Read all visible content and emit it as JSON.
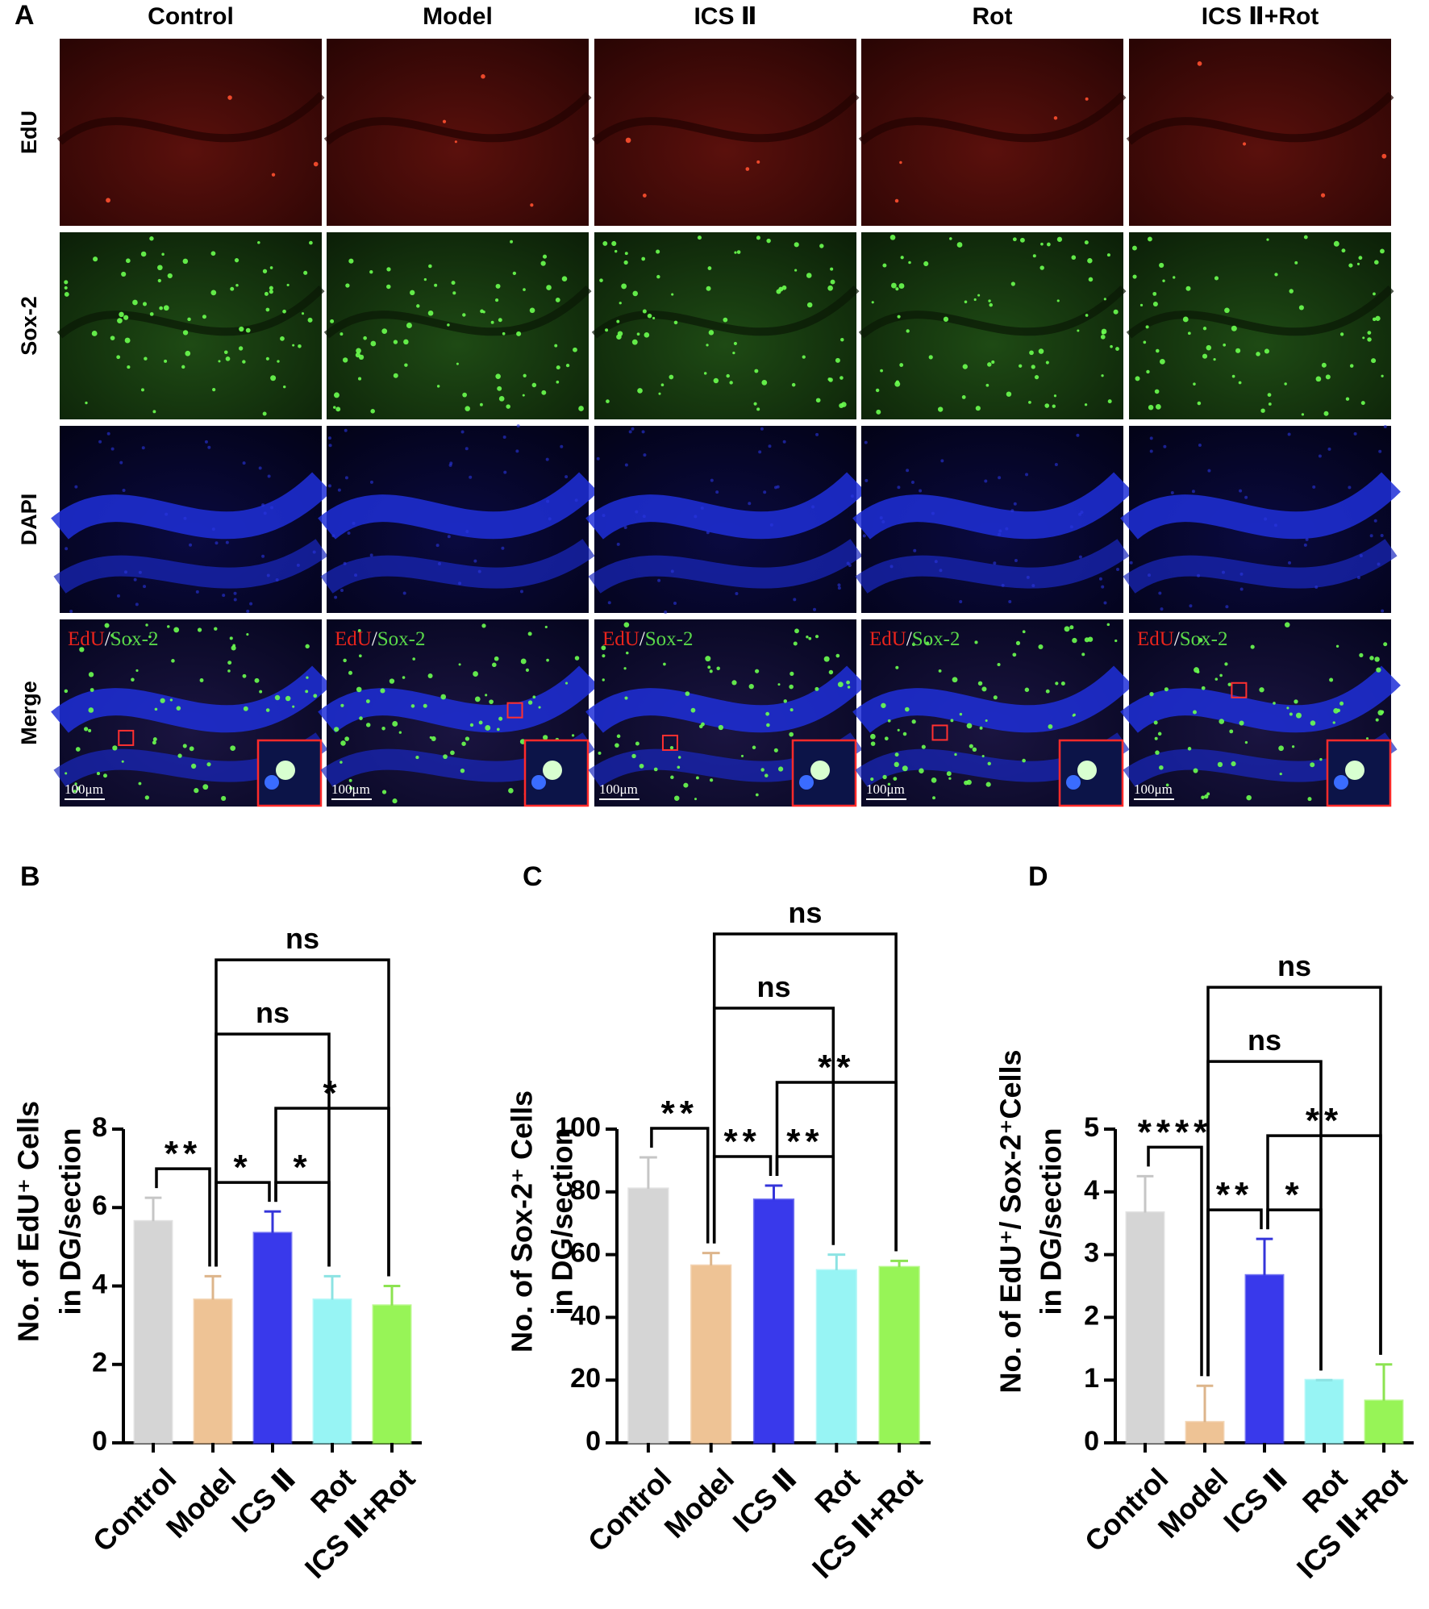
{
  "panel_a": {
    "letter": "A",
    "columns": [
      "Control",
      "Model",
      "ICS Ⅱ",
      "Rot",
      "ICS Ⅱ+Rot"
    ],
    "rows": [
      "EdU",
      "Sox-2",
      "DAPI",
      "Merge"
    ],
    "merge_label": {
      "edu": "EdU",
      "slash": "/",
      "sox2": "Sox-2"
    },
    "scale_bar": "100μm"
  },
  "chart_data": [
    {
      "type": "bar",
      "panel": "B",
      "y_label": [
        "No. of EdU⁺ Cells",
        "in DG/section"
      ],
      "categories": [
        "Control",
        "Model",
        "ICS Ⅱ",
        "Rot",
        "ICS Ⅱ+Rot"
      ],
      "values": [
        5.65,
        3.65,
        5.35,
        3.65,
        3.5
      ],
      "errors": [
        0.6,
        0.6,
        0.55,
        0.6,
        0.5
      ],
      "colors": [
        "#dcdcdc",
        "#f5c99a",
        "#3b3bf2",
        "#9cfcfc",
        "#9cfc5a"
      ],
      "ylim": [
        0,
        8
      ],
      "yticks": [
        0,
        2,
        4,
        6,
        8
      ],
      "annotations": [
        {
          "label": "**",
          "pair": [
            0,
            1
          ]
        },
        {
          "label": "*",
          "pair": [
            2,
            3
          ]
        },
        {
          "label": "*",
          "pair": [
            1,
            2
          ]
        },
        {
          "label": "*",
          "pair": [
            2,
            4
          ]
        },
        {
          "label": "ns",
          "pair": [
            1,
            3
          ]
        },
        {
          "label": "ns",
          "pair": [
            1,
            4
          ]
        }
      ]
    },
    {
      "type": "bar",
      "panel": "C",
      "y_label": [
        "No. of Sox-2⁺ Cells",
        "in DG/section"
      ],
      "categories": [
        "Control",
        "Model",
        "ICS Ⅱ",
        "Rot",
        "ICS Ⅱ+Rot"
      ],
      "values": [
        81,
        56.5,
        77.5,
        55,
        56
      ],
      "errors": [
        10,
        4,
        4.5,
        5,
        2
      ],
      "colors": [
        "#dcdcdc",
        "#f5c99a",
        "#3b3bf2",
        "#9cfcfc",
        "#9cfc5a"
      ],
      "ylim": [
        0,
        100
      ],
      "yticks": [
        0,
        20,
        40,
        60,
        80,
        100
      ],
      "annotations": [
        {
          "label": "**",
          "pair": [
            0,
            1
          ]
        },
        {
          "label": "**",
          "pair": [
            2,
            3
          ]
        },
        {
          "label": "**",
          "pair": [
            1,
            2
          ]
        },
        {
          "label": "**",
          "pair": [
            2,
            4
          ]
        },
        {
          "label": "ns",
          "pair": [
            1,
            3
          ]
        },
        {
          "label": "ns",
          "pair": [
            1,
            4
          ]
        }
      ]
    },
    {
      "type": "bar",
      "panel": "D",
      "y_label": [
        "No. of EdU⁺/ Sox-2⁺Cells",
        "in DG/section"
      ],
      "categories": [
        "Control",
        "Model",
        "ICS Ⅱ",
        "Rot",
        "ICS Ⅱ+Rot"
      ],
      "values": [
        3.67,
        0.33,
        2.67,
        1.0,
        0.67
      ],
      "errors": [
        0.58,
        0.58,
        0.58,
        0,
        0.58
      ],
      "colors": [
        "#dcdcdc",
        "#f5c99a",
        "#3b3bf2",
        "#9cfcfc",
        "#9cfc5a"
      ],
      "ylim": [
        0,
        5
      ],
      "yticks": [
        0,
        1,
        2,
        3,
        4,
        5
      ],
      "annotations": [
        {
          "label": "****",
          "pair": [
            0,
            1
          ]
        },
        {
          "label": "*",
          "pair": [
            2,
            3
          ]
        },
        {
          "label": "**",
          "pair": [
            1,
            2
          ]
        },
        {
          "label": "**",
          "pair": [
            2,
            4
          ]
        },
        {
          "label": "ns",
          "pair": [
            1,
            3
          ]
        },
        {
          "label": "ns",
          "pair": [
            1,
            4
          ]
        }
      ]
    }
  ]
}
